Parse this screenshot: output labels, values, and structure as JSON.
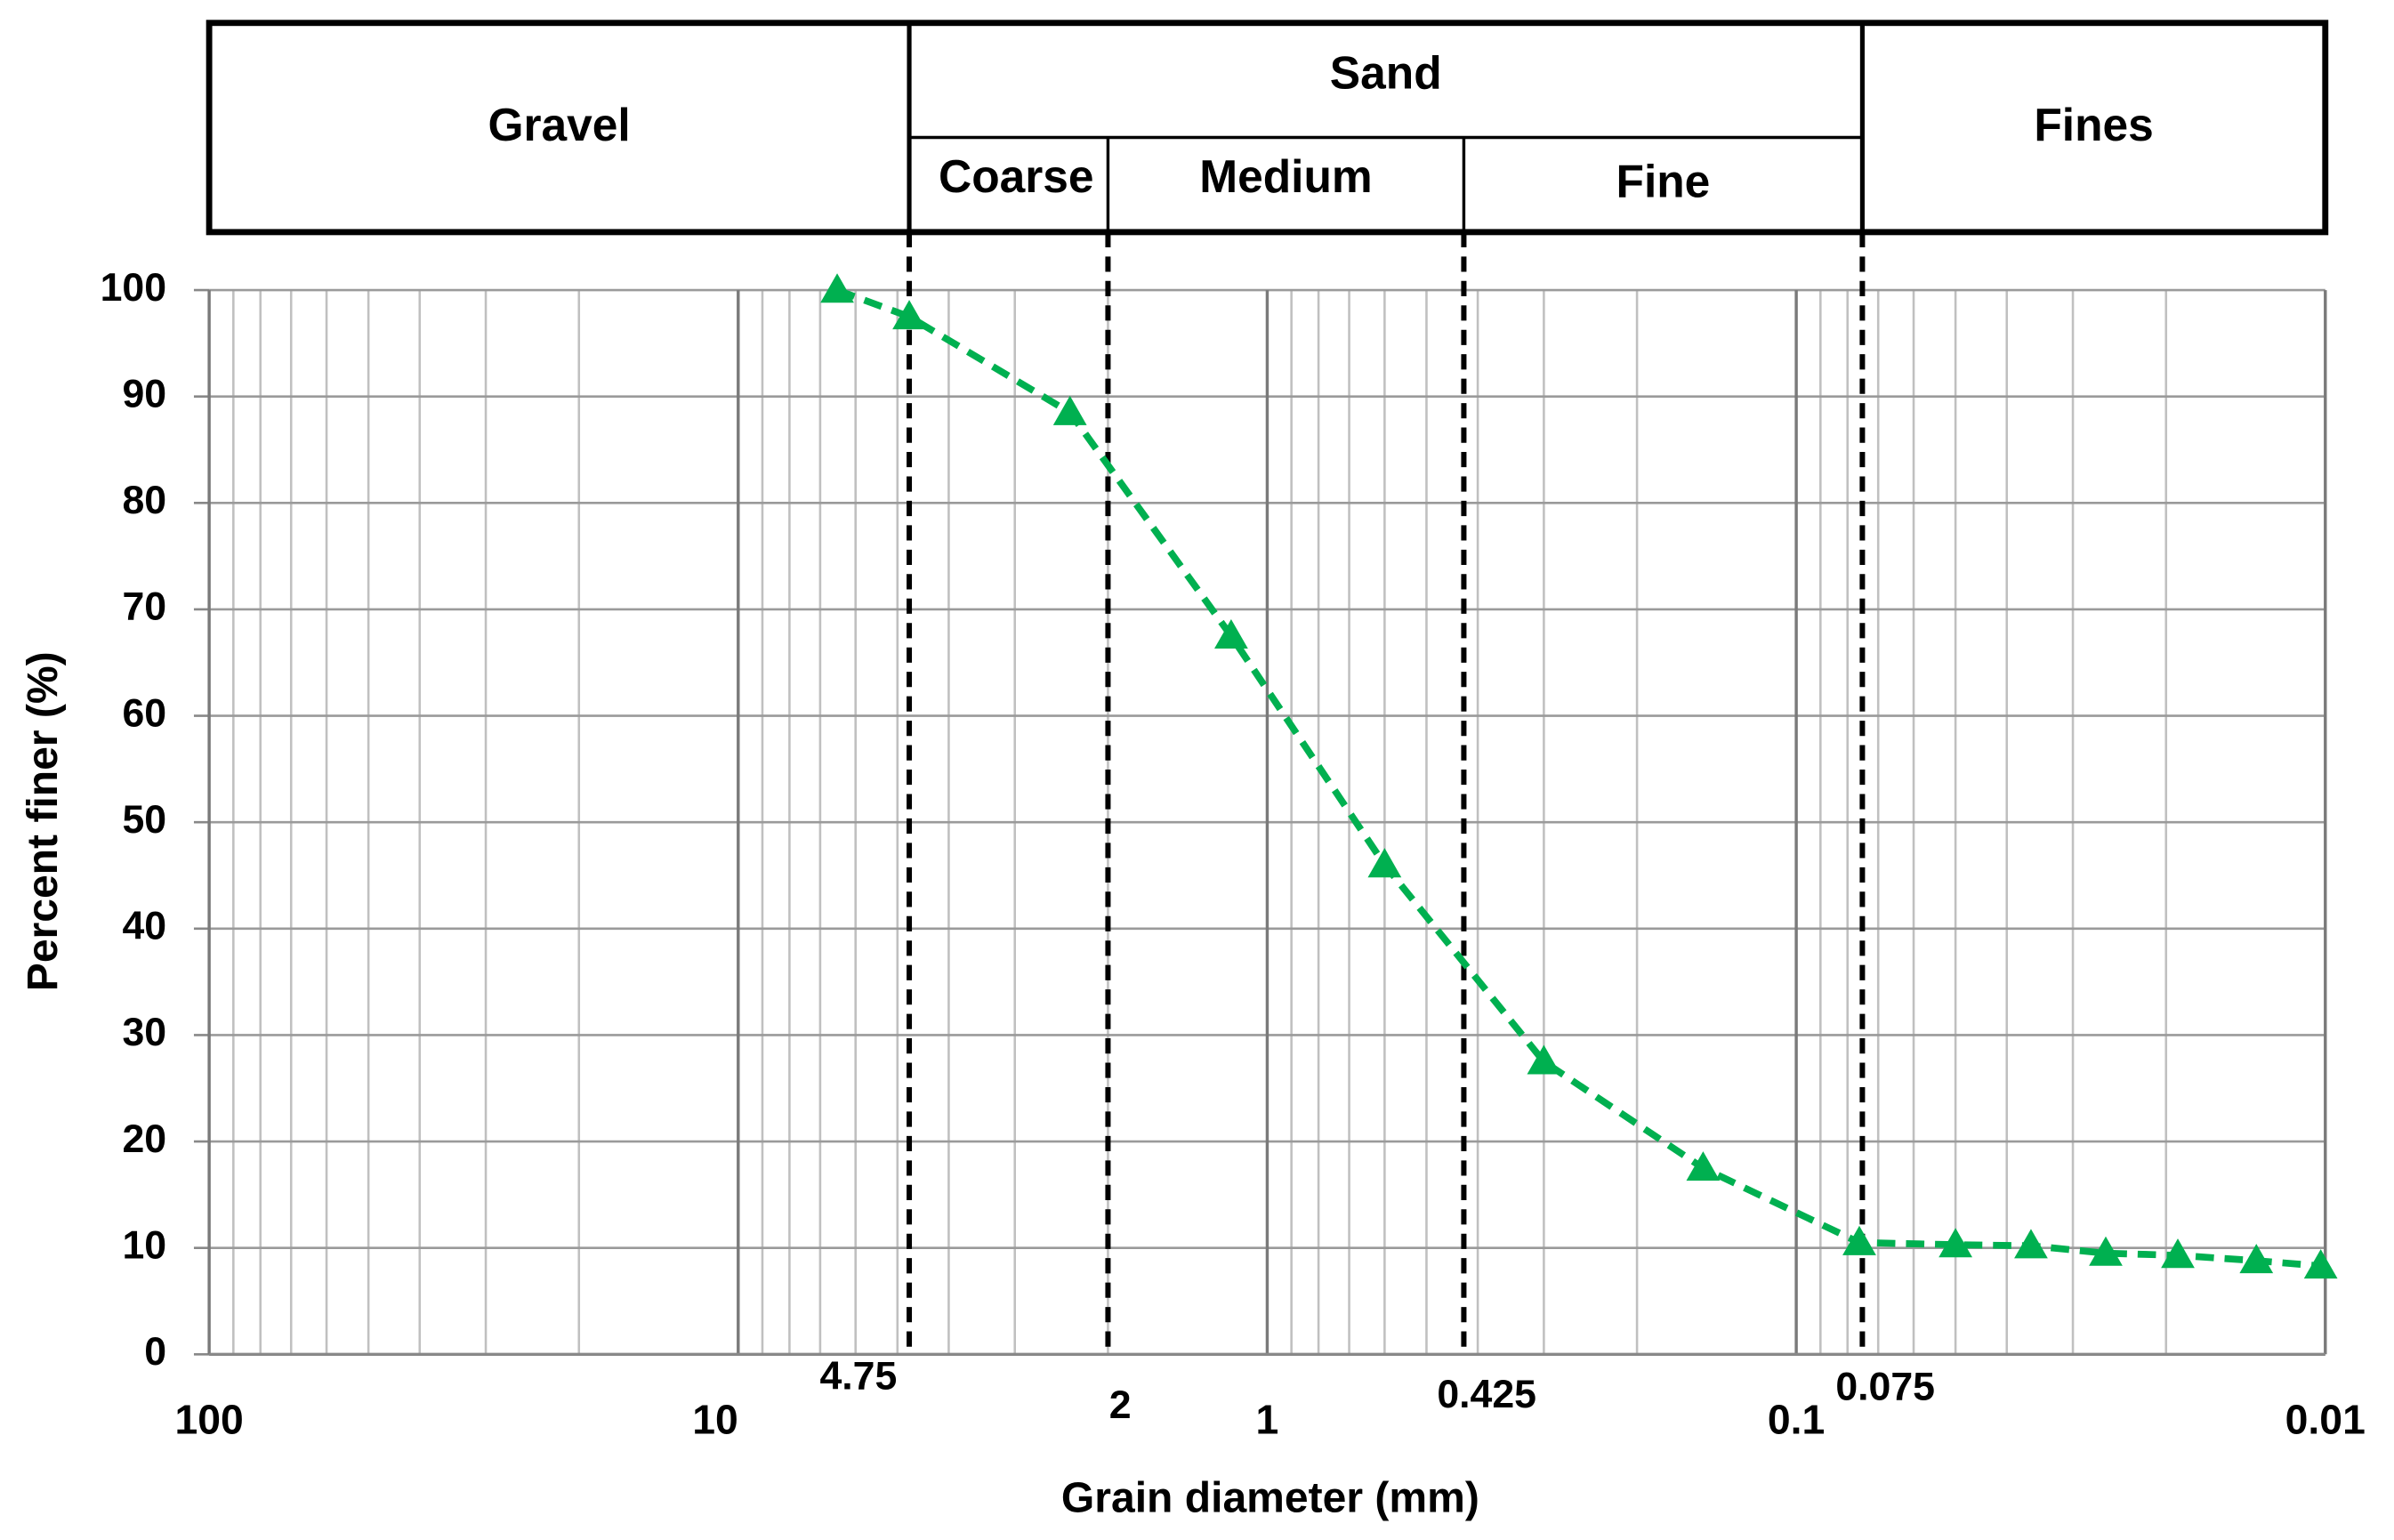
{
  "chart_data": {
    "type": "line",
    "x_label": "Grain diameter (mm)",
    "y_label": "Percent finer (%)",
    "x_scale": "log",
    "xlim": [
      100,
      0.01
    ],
    "xticks": [
      100,
      10,
      1,
      0.1,
      0.01
    ],
    "ylim": [
      0,
      100
    ],
    "yticks": [
      0,
      10,
      20,
      30,
      40,
      50,
      60,
      70,
      80,
      90,
      100
    ],
    "grid": true,
    "minor_grid": true,
    "x": [
      6.5,
      4.75,
      2.36,
      1.17,
      0.6,
      0.3,
      0.15,
      0.076,
      0.05,
      0.036,
      0.026,
      0.019,
      0.0135,
      0.0102
    ],
    "series": [
      {
        "color": "#00b050",
        "marker": "triangle",
        "dashed": true,
        "values": [
          100,
          97.5,
          88.5,
          67.5,
          46,
          27.5,
          17.5,
          10.5,
          10.3,
          10.2,
          9.5,
          9.3,
          8.8,
          8.3
        ]
      }
    ],
    "boundaries": [
      4.75,
      2,
      0.425,
      0.075
    ],
    "classes": {
      "gravel": "Gravel",
      "sand": "Sand",
      "coarse": "Coarse",
      "medium": "Medium",
      "fine": "Fine",
      "fines": "Fines"
    }
  }
}
